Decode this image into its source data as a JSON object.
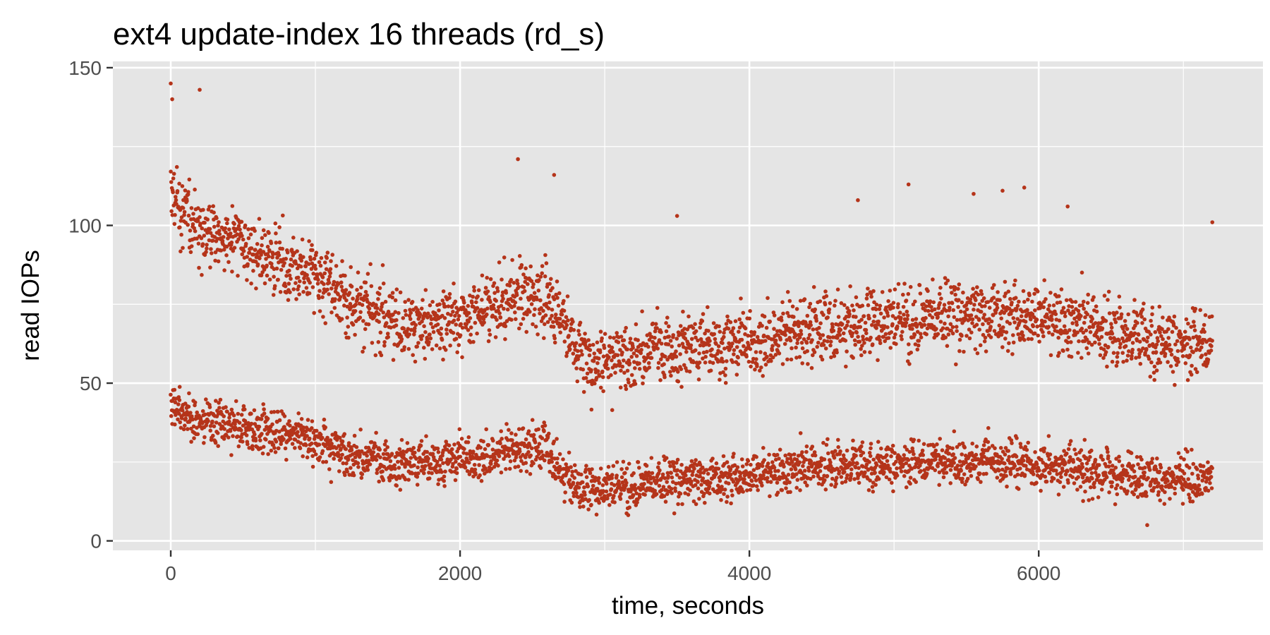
{
  "chart_data": {
    "type": "scatter",
    "title": "ext4 update-index 16 threads (rd_s)",
    "xlabel": "time, seconds",
    "ylabel": "read IOPs",
    "xlim": [
      -400,
      7550
    ],
    "ylim": [
      -3,
      152
    ],
    "x_ticks": [
      0,
      2000,
      4000,
      6000
    ],
    "y_ticks": [
      0,
      50,
      100,
      150
    ],
    "x_tick_labels": [
      "0",
      "2000",
      "4000",
      "6000"
    ],
    "y_tick_labels": [
      "0",
      "50",
      "100",
      "150"
    ],
    "x_minor_gridlines": [
      1000,
      3000,
      5000,
      7000
    ],
    "y_minor_gridlines": [
      25,
      75,
      125
    ],
    "grid": true,
    "legend": "none",
    "background_color": "#E5E5E5",
    "gridline_color": "#FFFFFF",
    "point_color": "#B5341A",
    "series": [
      {
        "x": [
          0,
          100,
          200,
          400,
          600,
          800,
          1000,
          1200,
          1400,
          1600,
          1800,
          2000,
          2200,
          2400,
          2600,
          2700,
          2800,
          2900,
          3000,
          3200,
          3400,
          3600,
          3800,
          4000,
          4200,
          4400,
          4600,
          4800,
          5000,
          5200,
          5400,
          5600,
          5800,
          6000,
          6200,
          6400,
          6600,
          6800,
          7000,
          7200
        ],
        "upper_band": [
          110,
          103,
          100,
          95,
          91,
          88,
          84,
          78,
          72,
          68,
          69,
          71,
          73,
          78,
          77,
          70,
          62,
          56,
          58,
          59,
          60,
          61,
          62,
          63,
          65,
          67,
          68,
          69,
          70,
          71,
          72,
          72,
          72,
          71,
          69,
          67,
          65,
          64,
          63,
          63
        ],
        "lower_band": [
          43,
          40,
          38,
          36,
          35,
          34,
          32,
          28,
          25,
          24,
          25,
          26,
          27,
          29,
          30,
          22,
          18,
          16,
          17,
          18,
          19,
          20,
          20,
          21,
          22,
          23,
          24,
          24,
          25,
          25,
          25,
          25,
          25,
          24,
          23,
          22,
          21,
          20,
          20,
          20
        ]
      }
    ],
    "highlights": [
      {
        "x": 0,
        "y": 145
      },
      {
        "x": 10,
        "y": 140
      },
      {
        "x": 200,
        "y": 143
      },
      {
        "x": 2400,
        "y": 121
      },
      {
        "x": 2650,
        "y": 116
      },
      {
        "x": 3500,
        "y": 103
      },
      {
        "x": 4750,
        "y": 108
      },
      {
        "x": 5100,
        "y": 113
      },
      {
        "x": 5550,
        "y": 110
      },
      {
        "x": 5750,
        "y": 111
      },
      {
        "x": 5900,
        "y": 112
      },
      {
        "x": 6200,
        "y": 106
      },
      {
        "x": 6750,
        "y": 5
      },
      {
        "x": 7200,
        "y": 101
      }
    ]
  }
}
